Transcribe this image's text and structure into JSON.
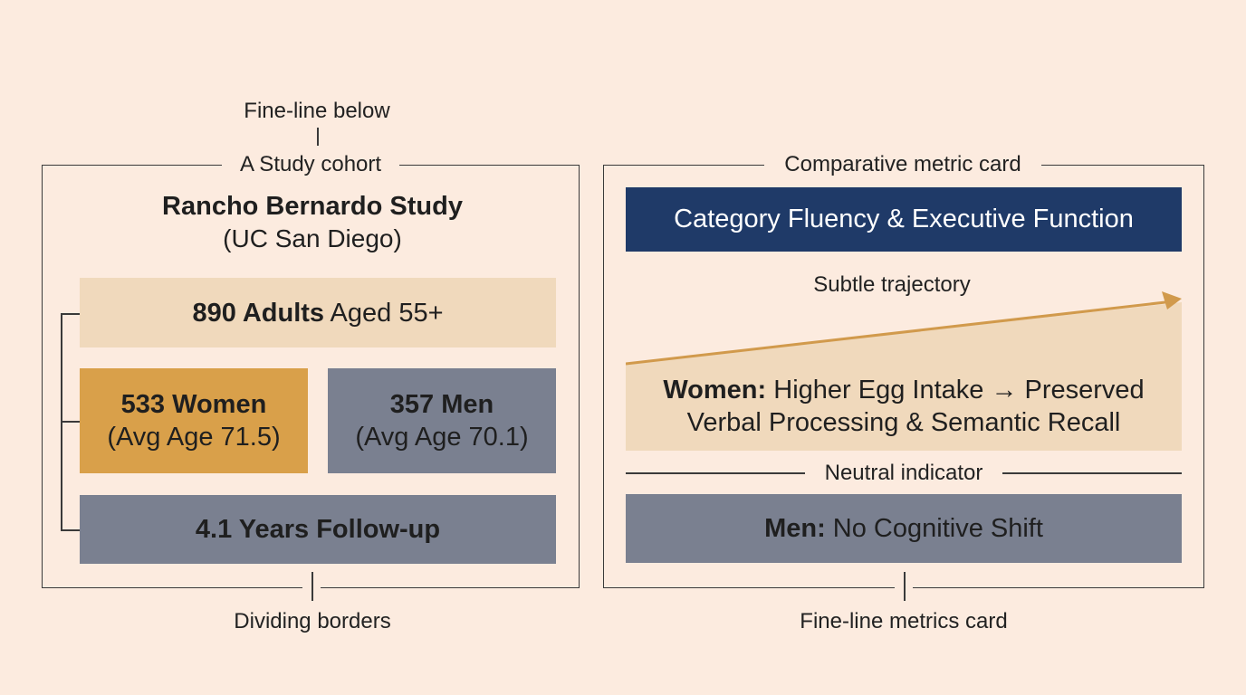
{
  "left_panel": {
    "top_note": "Fine-line below",
    "legend": "A Study cohort",
    "title": "Rancho Bernardo Study",
    "subtitle": "(UC San Diego)",
    "adults_bold": "890 Adults",
    "adults_rest": " Aged 55+",
    "women_title": "533 Women",
    "women_sub": "(Avg Age 71.5)",
    "men_title": "357 Men",
    "men_sub": "(Avg Age 70.1)",
    "followup": "4.1 Years Follow-up",
    "bottom_note": "Dividing borders"
  },
  "right_panel": {
    "legend": "Comparative metric card",
    "header": "Category Fluency & Executive Function",
    "trajectory_label": "Subtle trajectory",
    "women_bold": "Women:",
    "women_line1_rest": " Higher Egg Intake → Preserved",
    "women_line2": "Verbal Processing & Semantic Recall",
    "neutral_label": "Neutral indicator",
    "men_bold": "Men:",
    "men_rest": " No Cognitive Shift",
    "bottom_note": "Fine-line metrics card"
  },
  "colors": {
    "background": "#fcebdf",
    "tan": "#f0d9bc",
    "gold": "#d9a04a",
    "slate": "#7a8090",
    "navy": "#1f3a68",
    "arrow": "#d19a4c"
  }
}
